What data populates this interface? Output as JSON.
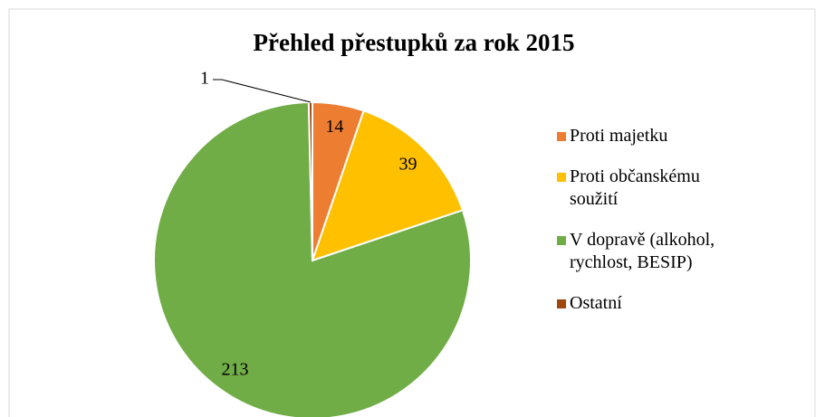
{
  "chart_data": {
    "type": "pie",
    "title": "Přehled přestupků za rok 2015",
    "categories": [
      "Proti majetku",
      "Proti občanskému soužití",
      "V dopravě (alkohol, rychlost, BESIP)",
      "Ostatní"
    ],
    "values": [
      14,
      39,
      213,
      1
    ],
    "colors": [
      "#ed7d31",
      "#ffc000",
      "#70ad47",
      "#9e480e"
    ],
    "legend": "right"
  }
}
